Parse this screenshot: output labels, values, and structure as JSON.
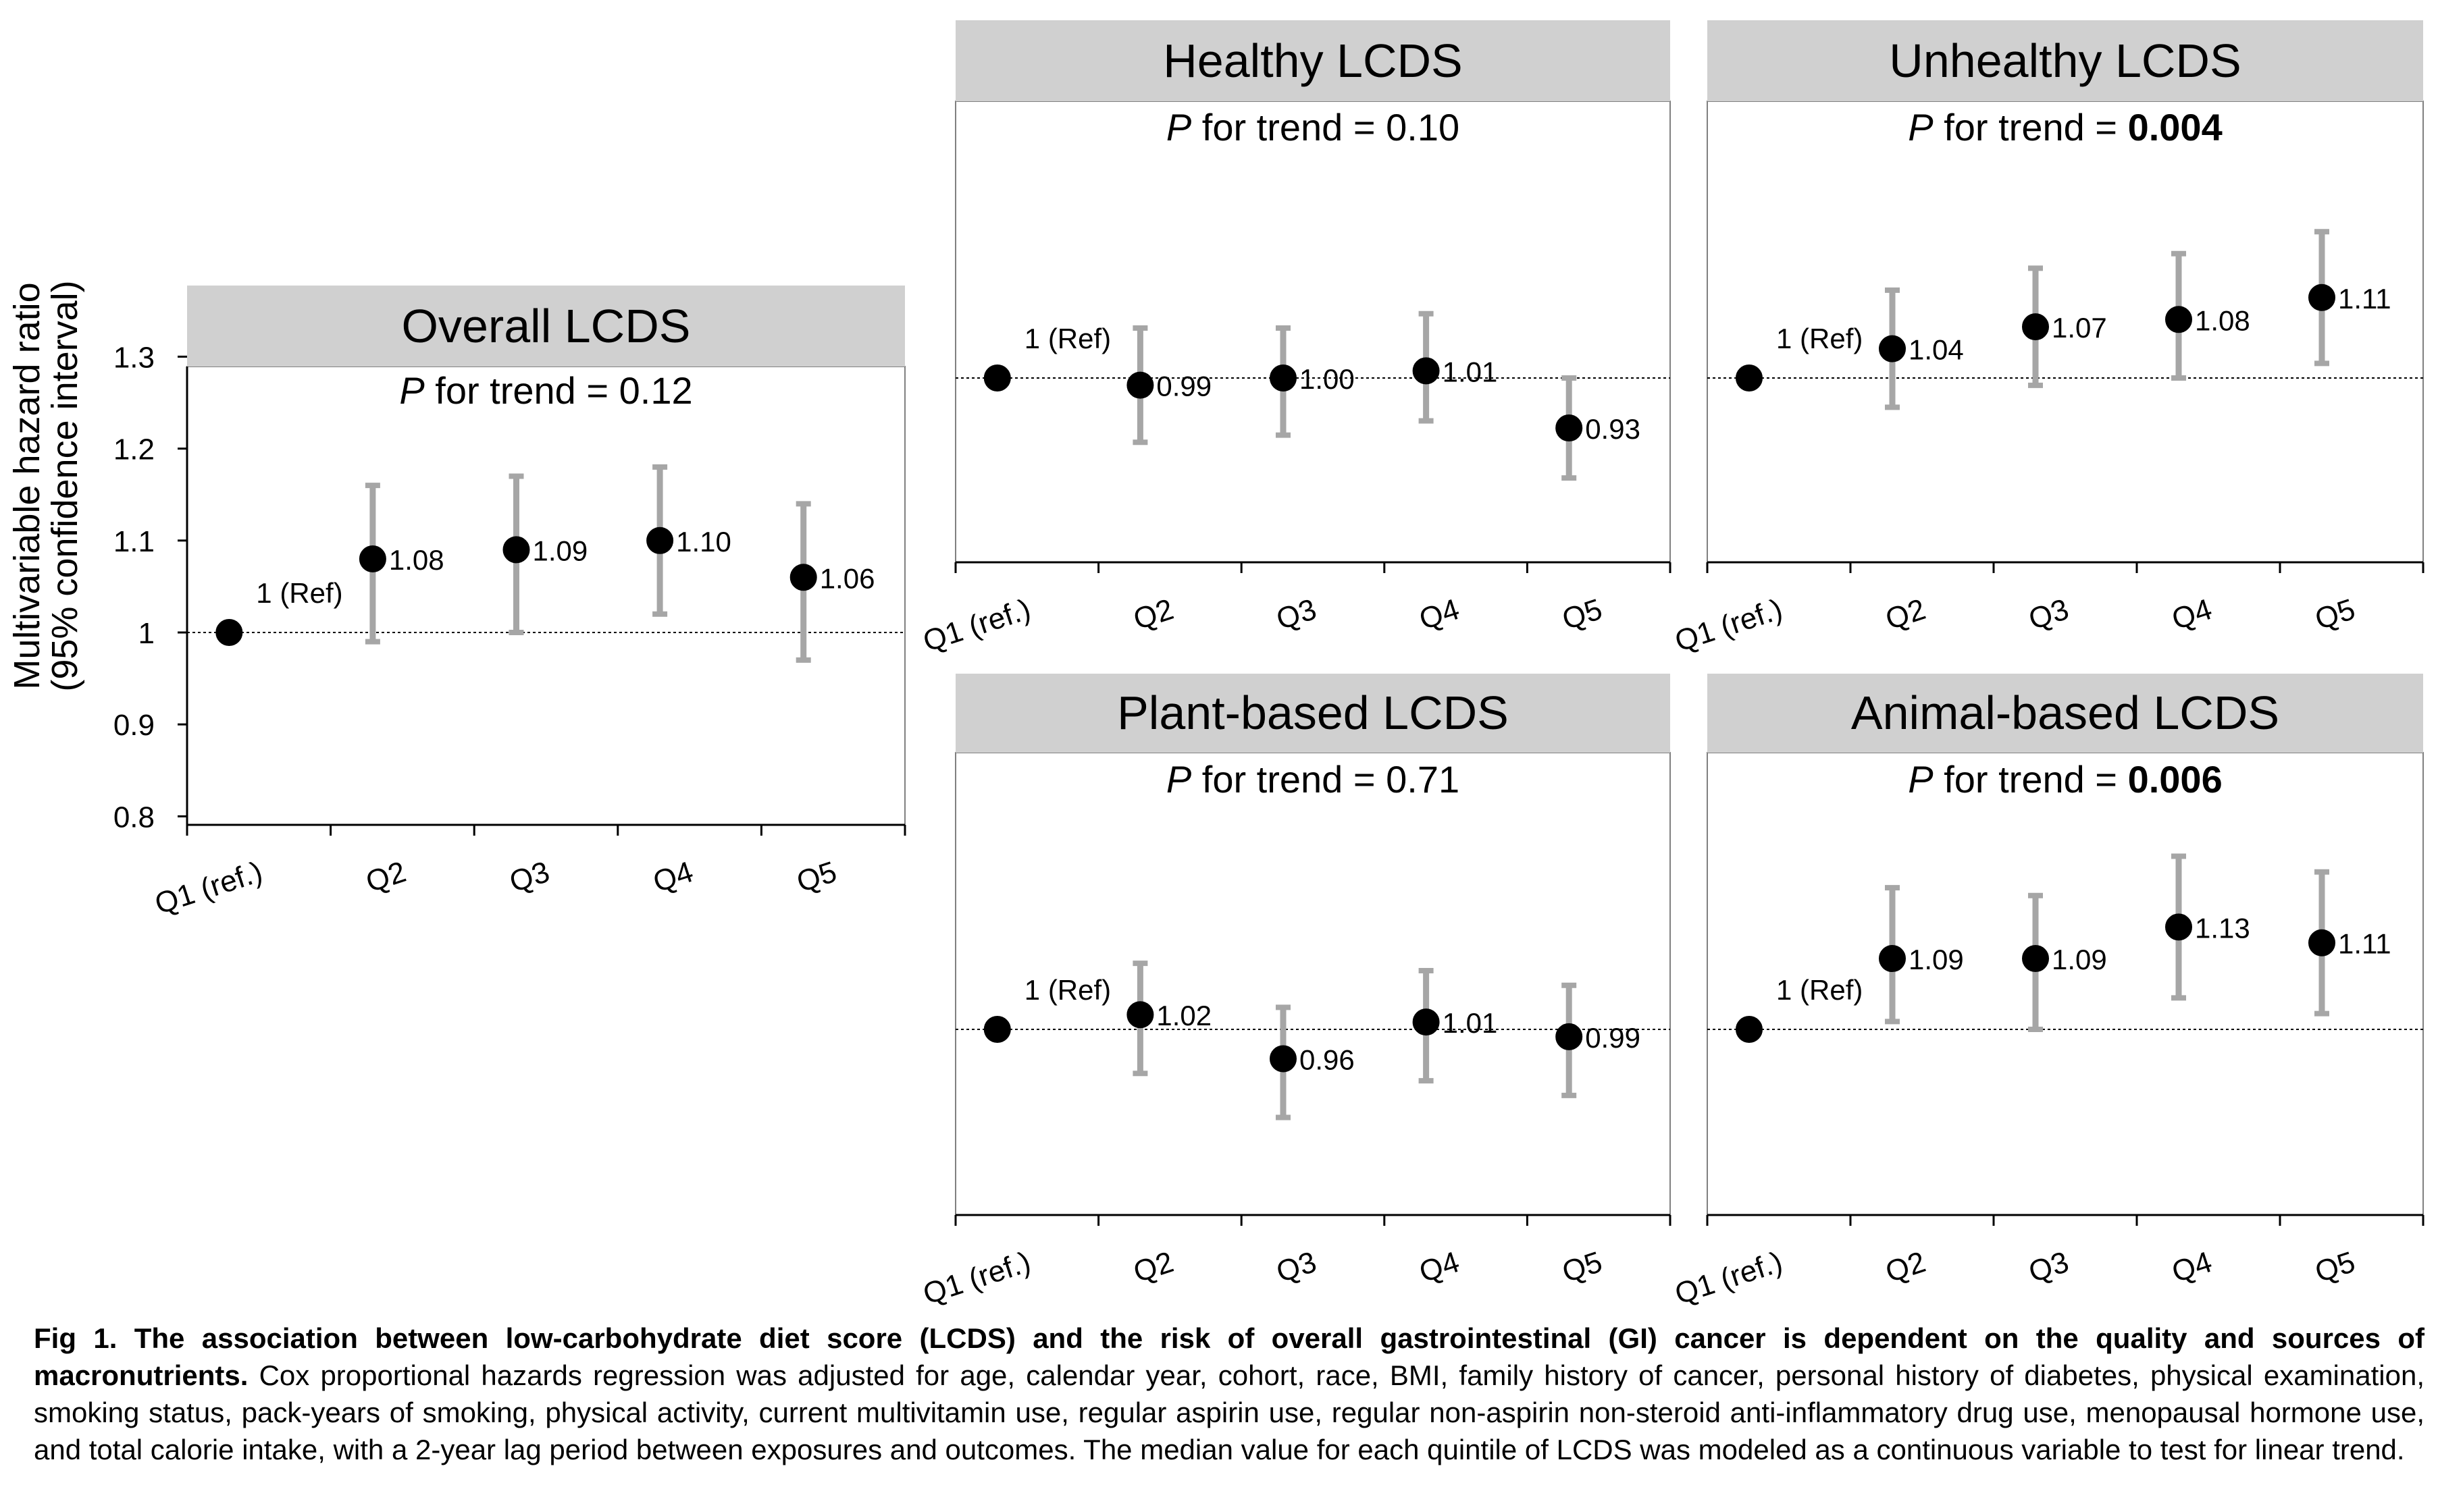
{
  "figure": {
    "y_axis_label_line1": "Multivariable hazard ratio",
    "y_axis_label_line2": "(95% confidence interval)",
    "y_ticks": [
      "1.3",
      "1.2",
      "1.1",
      "1",
      "0.9",
      "0.8"
    ]
  },
  "caption": {
    "bold": "Fig 1. The association between low-carbohydrate diet score (LCDS) and the risk of overall gastrointestinal (GI) cancer is dependent on the quality and sources of macronutrients.",
    "body": " Cox proportional hazards regression was adjusted for age, calendar year, cohort, race, BMI, family history of cancer, personal history of diabetes, physical examination, smoking status, pack-years of smoking, physical activity, current multivitamin use, regular aspirin use, regular non-aspirin non-steroid anti-inflammatory drug use, menopausal hormone use, and total calorie intake, with a 2-year lag period between exposures and outcomes. The median value for each quintile of LCDS was modeled as a continuous variable to test for linear trend."
  },
  "colors": {
    "header_bg": "#d0d0d0",
    "error_bar": "#a6a6a6",
    "point": "#000000",
    "axis": "#000000"
  },
  "chart_data": [
    {
      "type": "scatter",
      "title": "Overall LCDS",
      "trend_prefix": "P",
      "trend_text": " for trend = ",
      "trend_value": "0.12",
      "trend_bold": false,
      "categories": [
        "Q1 (ref.)",
        "Q2",
        "Q3",
        "Q4",
        "Q5"
      ],
      "values": [
        1.0,
        1.08,
        1.09,
        1.1,
        1.06
      ],
      "ci_low": [
        null,
        0.99,
        1.0,
        1.02,
        0.97
      ],
      "ci_high": [
        null,
        1.16,
        1.17,
        1.18,
        1.14
      ],
      "labels": [
        "1 (Ref)",
        "1.08",
        "1.09",
        "1.10",
        "1.06"
      ],
      "ylim": [
        0.8,
        1.3
      ],
      "reference_line": 1
    },
    {
      "type": "scatter",
      "title": "Healthy LCDS",
      "trend_prefix": "P",
      "trend_text": " for trend = ",
      "trend_value": "0.10",
      "trend_bold": false,
      "categories": [
        "Q1 (ref.)",
        "Q2",
        "Q3",
        "Q4",
        "Q5"
      ],
      "values": [
        1.0,
        0.99,
        1.0,
        1.01,
        0.93
      ],
      "ci_low": [
        null,
        0.91,
        0.92,
        0.94,
        0.86
      ],
      "ci_high": [
        null,
        1.07,
        1.07,
        1.09,
        1.0
      ],
      "labels": [
        "1 (Ref)",
        "0.99",
        "1.00",
        "1.01",
        "0.93"
      ],
      "ylim": [
        0.8,
        1.3
      ],
      "reference_line": 1
    },
    {
      "type": "scatter",
      "title": "Unhealthy LCDS",
      "trend_prefix": "P",
      "trend_text": " for trend = ",
      "trend_value": "0.004",
      "trend_bold": true,
      "categories": [
        "Q1 (ref.)",
        "Q2",
        "Q3",
        "Q4",
        "Q5"
      ],
      "values": [
        1.0,
        1.04,
        1.07,
        1.08,
        1.11
      ],
      "ci_low": [
        null,
        0.96,
        0.99,
        1.0,
        1.02
      ],
      "ci_high": [
        null,
        1.12,
        1.15,
        1.17,
        1.2
      ],
      "labels": [
        "1 (Ref)",
        "1.04",
        "1.07",
        "1.08",
        "1.11"
      ],
      "ylim": [
        0.8,
        1.3
      ],
      "reference_line": 1
    },
    {
      "type": "scatter",
      "title": "Plant-based LCDS",
      "trend_prefix": "P",
      "trend_text": " for trend = ",
      "trend_value": "0.71",
      "trend_bold": false,
      "categories": [
        "Q1 (ref.)",
        "Q2",
        "Q3",
        "Q4",
        "Q5"
      ],
      "values": [
        1.0,
        1.02,
        0.96,
        1.01,
        0.99
      ],
      "ci_low": [
        null,
        0.94,
        0.88,
        0.93,
        0.91
      ],
      "ci_high": [
        null,
        1.09,
        1.03,
        1.08,
        1.06
      ],
      "labels": [
        "1 (Ref)",
        "1.02",
        "0.96",
        "1.01",
        "0.99"
      ],
      "ylim": [
        0.8,
        1.3
      ],
      "reference_line": 1
    },
    {
      "type": "scatter",
      "title": "Animal-based LCDS",
      "trend_prefix": "P",
      "trend_text": " for trend = ",
      "trend_value": "0.006",
      "trend_bold": true,
      "categories": [
        "Q1 (ref.)",
        "Q2",
        "Q3",
        "Q4",
        "Q5"
      ],
      "values": [
        1.0,
        1.09,
        1.09,
        1.13,
        1.11
      ],
      "ci_low": [
        null,
        1.01,
        1.0,
        1.04,
        1.02
      ],
      "ci_high": [
        null,
        1.18,
        1.17,
        1.22,
        1.2
      ],
      "labels": [
        "1 (Ref)",
        "1.09",
        "1.09",
        "1.13",
        "1.11"
      ],
      "ylim": [
        0.8,
        1.3
      ],
      "reference_line": 1
    }
  ]
}
